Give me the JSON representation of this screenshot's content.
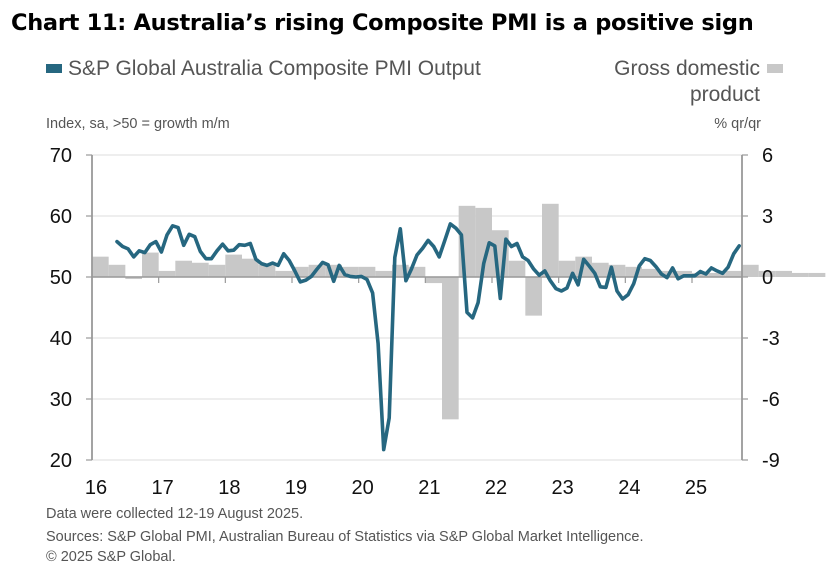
{
  "chart_data": {
    "type": "line",
    "title": "Chart 11: Australia’s rising Composite PMI is a positive sign",
    "legend": {
      "left": {
        "label": "S&P Global Australia Composite PMI Output",
        "color": "#266780",
        "placement": "top-left"
      },
      "right": {
        "label": "Gross domestic product",
        "color": "#c8c8c8",
        "placement": "top-right"
      }
    },
    "ylabel_left": "Index, sa, >50 = growth m/m",
    "ylabel_right": "% qr/qr",
    "ylim_left": [
      20,
      70
    ],
    "ylim_right": [
      -9,
      6
    ],
    "yticks_left": [
      "70",
      "60",
      "50",
      "40",
      "30",
      "20"
    ],
    "yticks_right": [
      "6",
      "3",
      "0",
      "-3",
      "-6",
      "-9"
    ],
    "xticks": [
      "16",
      "17",
      "18",
      "19",
      "20",
      "21",
      "22",
      "23",
      "24",
      "25"
    ],
    "x_range": [
      "2016-01",
      "2025-09"
    ],
    "grid": true,
    "series": [
      {
        "name": "S&P Global Australia Composite PMI Output",
        "type": "line",
        "axis": "left",
        "start": "2016-05",
        "frequency": "monthly",
        "values": [
          55.8,
          55.0,
          54.6,
          53.3,
          54.3,
          54.0,
          55.3,
          55.8,
          54.1,
          56.9,
          58.4,
          58.1,
          55.2,
          57.0,
          56.6,
          54.2,
          53.0,
          53.0,
          54.3,
          55.4,
          54.3,
          54.4,
          55.3,
          55.2,
          55.5,
          52.9,
          52.2,
          51.9,
          52.3,
          51.9,
          53.8,
          52.7,
          51.0,
          49.2,
          49.5,
          50.1,
          51.3,
          52.4,
          52.0,
          49.3,
          51.9,
          50.4,
          50.1,
          50.0,
          50.1,
          49.6,
          47.4,
          39.1,
          21.7,
          26.9,
          53.2,
          57.9,
          49.4,
          51.3,
          53.6,
          54.7,
          56.0,
          55.0,
          53.3,
          56.0,
          58.7,
          58.0,
          56.9,
          44.2,
          43.3,
          45.8,
          52.2,
          55.6,
          55.1,
          46.5,
          56.2,
          55.0,
          55.5,
          53.3,
          52.7,
          51.3,
          50.3,
          51.0,
          49.4,
          48.1,
          47.7,
          48.2,
          50.6,
          48.7,
          52.9,
          51.8,
          50.6,
          48.4,
          48.3,
          51.6,
          47.7,
          46.4,
          47.1,
          48.9,
          51.8,
          53.0,
          52.7,
          51.7,
          50.5,
          49.9,
          51.5,
          49.7,
          50.2,
          50.2,
          50.2,
          50.9,
          50.5,
          51.5,
          51.0,
          50.6,
          51.6,
          53.8,
          55.1
        ]
      },
      {
        "name": "Gross domestic product",
        "type": "bar",
        "axis": "right",
        "start": "2016-Q1",
        "frequency": "quarterly",
        "values": [
          1.0,
          0.6,
          -0.1,
          1.2,
          0.3,
          0.8,
          0.7,
          0.6,
          1.1,
          0.9,
          0.6,
          0.3,
          0.5,
          0.6,
          0.6,
          0.5,
          0.5,
          0.3,
          0.6,
          0.5,
          -0.3,
          -7.0,
          3.5,
          3.4,
          2.3,
          0.8,
          -1.9,
          3.6,
          0.8,
          1.0,
          0.7,
          0.6,
          0.5,
          0.4,
          0.3,
          0.3,
          0.2,
          0.2,
          0.3,
          0.6,
          0.3,
          0.3,
          0.2,
          0.2
        ]
      }
    ],
    "notes": [
      "Data were collected 12-19 August 2025.",
      "Sources: S&P Global PMI, Australian Bureau of Statistics via S&P Global Market Intelligence.",
      "© 2025 S&P Global."
    ]
  }
}
